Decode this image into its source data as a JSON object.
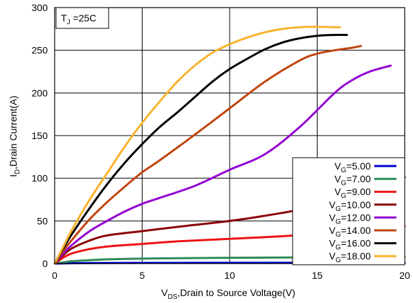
{
  "chart_data": {
    "type": "line",
    "annotation": {
      "main": "T",
      "sub": "J",
      "rest": " =25C"
    },
    "xlabel": {
      "pre": "V",
      "sub": "DS",
      "post": ",Drain to Source Voltage(V)"
    },
    "ylabel": {
      "pre": "I",
      "sub": "D",
      "post": ",Drain Current(A)"
    },
    "xlim": [
      0,
      20
    ],
    "ylim": [
      0,
      300
    ],
    "xticks": [
      "0",
      "5",
      "10",
      "15",
      "20"
    ],
    "yticks": [
      "0",
      "50",
      "100",
      "150",
      "200",
      "250",
      "300"
    ],
    "grid": true,
    "legend_position": "bottom-right",
    "series": [
      {
        "name": "V_G=5.00",
        "label_pre": "V",
        "label_sub": "G",
        "label_post": "=5.00",
        "color": "#0000cc",
        "x": [
          0,
          0.5,
          1,
          2,
          5,
          10,
          15,
          20
        ],
        "y": [
          0,
          0.2,
          0.4,
          0.6,
          0.8,
          0.9,
          1.0,
          1.0
        ]
      },
      {
        "name": "V_G=7.00",
        "label_pre": "V",
        "label_sub": "G",
        "label_post": "=7.00",
        "color": "#2e8b57",
        "x": [
          0,
          0.5,
          1,
          2,
          3,
          5,
          7,
          10,
          15,
          20
        ],
        "y": [
          0,
          1.5,
          2.8,
          4,
          5,
          5.8,
          6.3,
          6.8,
          7.3,
          7.8
        ]
      },
      {
        "name": "V_G=9.00",
        "label_pre": "V",
        "label_sub": "G",
        "label_post": "=9.00",
        "color": "#ee1111",
        "x": [
          0,
          0.5,
          1,
          2,
          3,
          5,
          7,
          10,
          13,
          15,
          17,
          20
        ],
        "y": [
          0,
          7,
          12,
          17,
          20,
          23,
          26,
          29,
          32,
          35,
          38,
          44
        ]
      },
      {
        "name": "V_G=10.00",
        "label_pre": "V",
        "label_sub": "G",
        "label_post": "=10.00",
        "color": "#8b0000",
        "x": [
          0,
          0.5,
          1,
          2,
          3,
          5,
          7,
          10,
          12,
          14,
          16,
          18,
          20
        ],
        "y": [
          0,
          10,
          18,
          27,
          33,
          38,
          43,
          50,
          56,
          63,
          71,
          82,
          101
        ]
      },
      {
        "name": "V_G=12.00",
        "label_pre": "V",
        "label_sub": "G",
        "label_post": "=12.00",
        "color": "#9400d3",
        "x": [
          0,
          0.5,
          1,
          2,
          3,
          4,
          5,
          6,
          8,
          10,
          12,
          14,
          16,
          17,
          18,
          19.2
        ],
        "y": [
          0,
          12,
          22,
          38,
          50,
          61,
          70,
          77,
          91,
          110,
          128,
          160,
          200,
          215,
          225,
          232
        ]
      },
      {
        "name": "V_G=14.00",
        "label_pre": "V",
        "label_sub": "G",
        "label_post": "=14.00",
        "color": "#c0440c",
        "x": [
          0,
          0.5,
          1,
          2,
          3,
          4,
          5,
          6,
          8,
          10,
          12,
          14,
          15,
          16,
          17,
          17.5
        ],
        "y": [
          0,
          15,
          28,
          52,
          72,
          90,
          107,
          121,
          151,
          182,
          213,
          238,
          246,
          250,
          253,
          255
        ]
      },
      {
        "name": "V_G=16.00",
        "label_pre": "V",
        "label_sub": "G",
        "label_post": "=16.00",
        "color": "#000000",
        "x": [
          0,
          0.5,
          1,
          2,
          3,
          4,
          5,
          6,
          7,
          8,
          9,
          10,
          11,
          12,
          13,
          14,
          15,
          16,
          16.7
        ],
        "y": [
          0,
          18,
          35,
          65,
          93,
          118,
          140,
          160,
          177,
          195,
          213,
          228,
          240,
          251,
          259,
          264,
          267,
          268,
          268
        ]
      },
      {
        "name": "V_G=18.00",
        "label_pre": "V",
        "label_sub": "G",
        "label_post": "=18.00",
        "color": "#f7b32b",
        "x": [
          0,
          0.5,
          1,
          2,
          3,
          4,
          5,
          6,
          7,
          8,
          9,
          10,
          11,
          12,
          13,
          14,
          15,
          16,
          16.3
        ],
        "y": [
          0,
          20,
          40,
          75,
          106,
          137,
          165,
          190,
          213,
          232,
          247,
          257,
          265,
          271,
          275,
          277,
          277.5,
          277,
          277
        ]
      }
    ]
  }
}
